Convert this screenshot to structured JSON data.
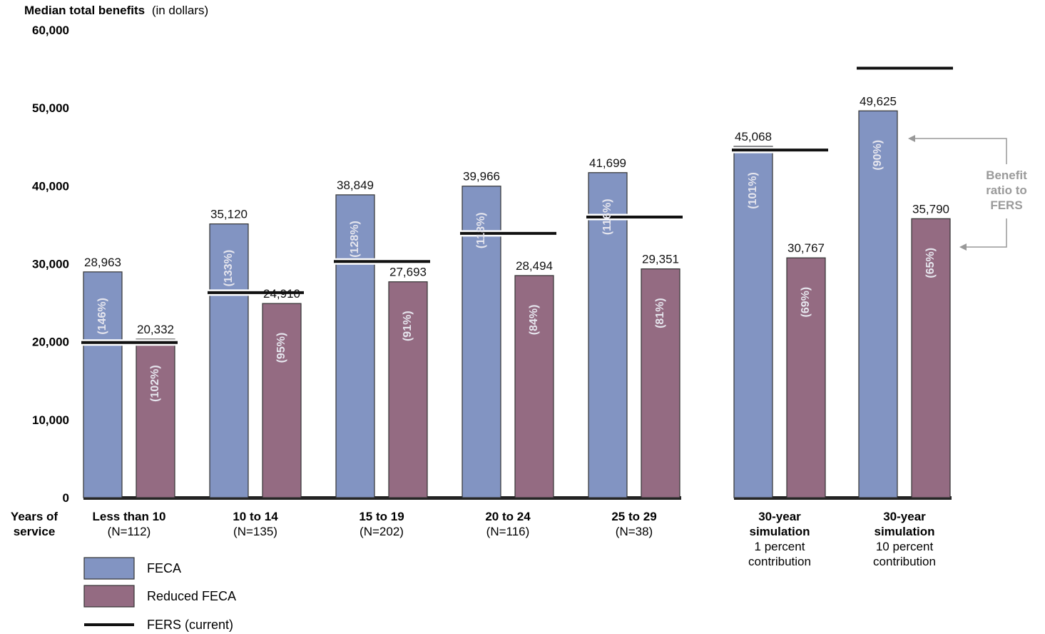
{
  "chart_data": {
    "type": "bar",
    "title": "Median total benefits",
    "title_unit": "(in dollars)",
    "ylim": [
      0,
      60000
    ],
    "y_ticks": [
      0,
      10000,
      20000,
      30000,
      40000,
      50000,
      60000
    ],
    "y_tick_labels": [
      "0",
      "10,000",
      "20,000",
      "30,000",
      "40,000",
      "50,000",
      "60,000"
    ],
    "xlabel_lines": [
      "Years of",
      "service"
    ],
    "categories": [
      {
        "lines": [
          "Less than 10",
          "(N=112)"
        ],
        "bold_lines": 1
      },
      {
        "lines": [
          "10 to 14",
          "(N=135)"
        ],
        "bold_lines": 1
      },
      {
        "lines": [
          "15 to 19",
          "(N=202)"
        ],
        "bold_lines": 1
      },
      {
        "lines": [
          "20 to 24",
          "(N=116)"
        ],
        "bold_lines": 1
      },
      {
        "lines": [
          "25 to 29",
          "(N=38)"
        ],
        "bold_lines": 1
      },
      {
        "lines": [
          "30-year",
          "simulation",
          "1 percent",
          "contribution"
        ],
        "bold_lines": 2
      },
      {
        "lines": [
          "30-year",
          "simulation",
          "10 percent",
          "contribution"
        ],
        "bold_lines": 2
      }
    ],
    "series": [
      {
        "name": "FECA",
        "color": "#8294c2",
        "values": [
          28963,
          35120,
          38849,
          39966,
          41699,
          45068,
          49625
        ],
        "value_labels": [
          "28,963",
          "35,120",
          "38,849",
          "39,966",
          "41,699",
          "45,068",
          "49,625"
        ],
        "ratio_labels": [
          "(146%)",
          "(133%)",
          "(128%)",
          "(118%)",
          "(116%)",
          "(101%)",
          "(90%)"
        ]
      },
      {
        "name": "Reduced FECA",
        "color": "#946b82",
        "values": [
          20332,
          24910,
          27693,
          28494,
          29351,
          30767,
          35790
        ],
        "value_labels": [
          "20,332",
          "24,910",
          "27,693",
          "28,494",
          "29,351",
          "30,767",
          "35,790"
        ],
        "ratio_labels": [
          "(102%)",
          "(95%)",
          "(91%)",
          "(84%)",
          "(81%)",
          "(69%)",
          "(65%)"
        ]
      }
    ],
    "fers_line": {
      "name": "FERS (current)",
      "color": "#111111",
      "values": [
        19900,
        26300,
        30300,
        33900,
        36000,
        44600,
        55100
      ]
    },
    "annotation": [
      "Benefit",
      "ratio to",
      "FERS"
    ],
    "legend_position": "bottom-left"
  }
}
